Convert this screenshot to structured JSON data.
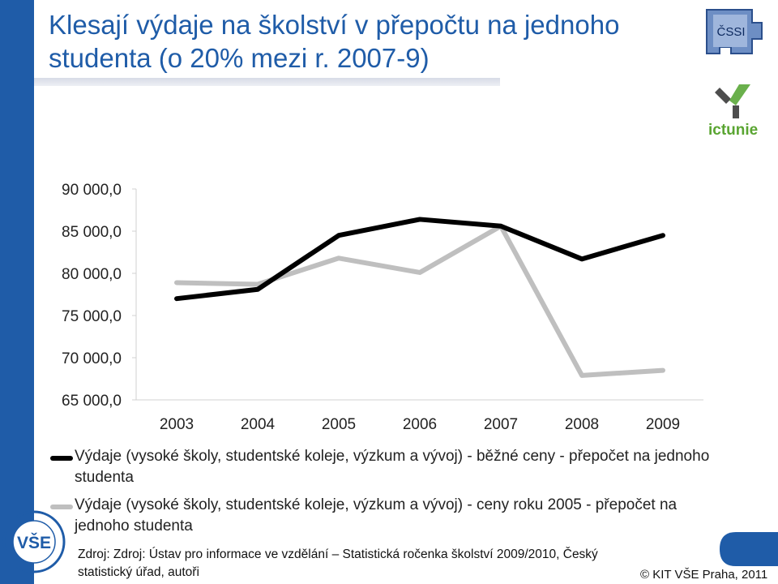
{
  "title": "Klesají výdaje na školství v přepočtu na jednoho studenta (o 20% mezi r. 2007-9)",
  "logos": {
    "cssi_text": "ČSSI",
    "ict_text": "ictunie",
    "vse_text": "VŠE"
  },
  "chart_data": {
    "type": "line",
    "x": [
      "2003",
      "2004",
      "2005",
      "2006",
      "2007",
      "2008",
      "2009"
    ],
    "ylim": [
      65000,
      90000
    ],
    "y_ticks": [
      "90 000,0",
      "85 000,0",
      "80 000,0",
      "75 000,0",
      "70 000,0",
      "65 000,0"
    ],
    "y_tick_values": [
      90000,
      85000,
      80000,
      75000,
      70000,
      65000
    ],
    "grid": false,
    "series": [
      {
        "name": "Výdaje (vysoké školy, studentské koleje, výzkum a vývoj) - běžné ceny  - přepočet na jednoho studenta",
        "color": "#000000",
        "values": [
          77000,
          78100,
          84500,
          86400,
          85600,
          81700,
          84500
        ]
      },
      {
        "name": "Výdaje (vysoké školy, studentské koleje, výzkum a vývoj) - ceny roku 2005 - přepočet na jednoho studenta",
        "color": "#bfbfbf",
        "values": [
          78900,
          78700,
          81800,
          80100,
          85600,
          67900,
          68500
        ]
      }
    ]
  },
  "source": "Zdroj: Zdroj: Ústav pro informace ve vzdělání – Statistická ročenka školství 2009/2010, Český statistický úřad, autoři",
  "copyright": "© KIT VŠE Praha, 2011"
}
